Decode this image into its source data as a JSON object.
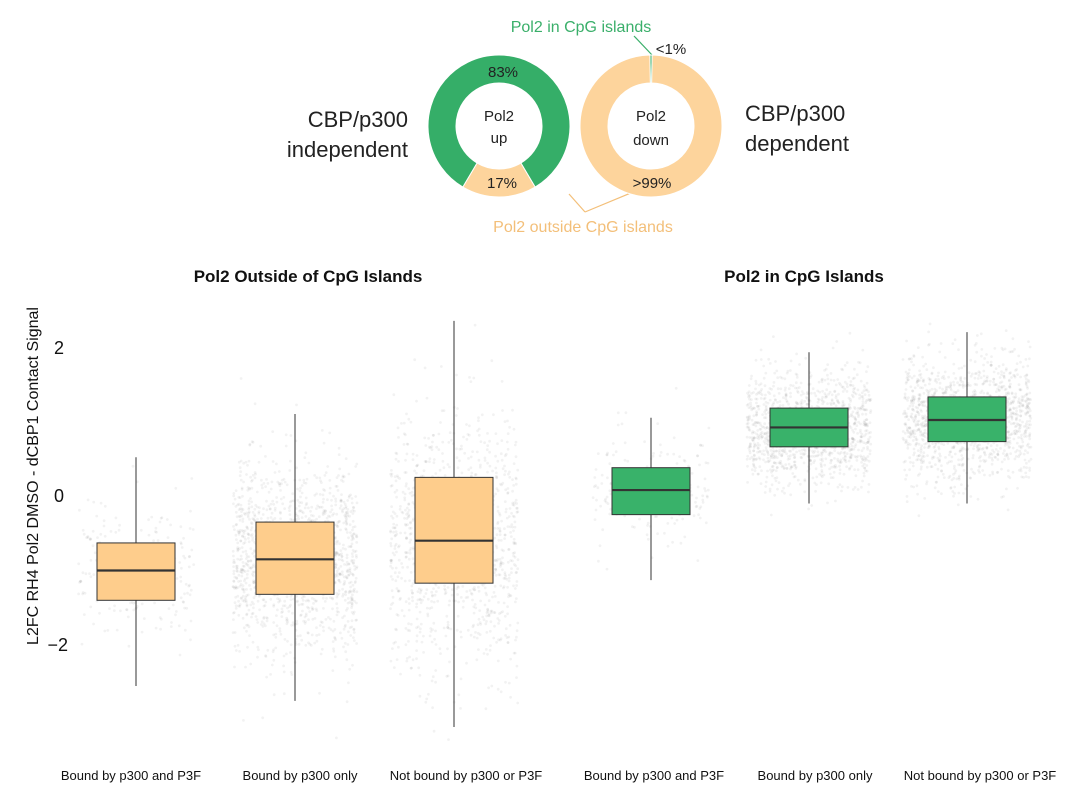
{
  "top": {
    "left_label_line1": "CBP/p300",
    "left_label_line2": "independent",
    "right_label_line1": "CBP/p300",
    "right_label_line2": "dependent",
    "legend_green": "Pol2 in CpG islands",
    "legend_orange": "Pol2 outside CpG islands",
    "donuts": [
      {
        "center_line1": "Pol2",
        "center_line2": "up",
        "slices": [
          {
            "label": "83%",
            "value": 83,
            "color": "#35ae68"
          },
          {
            "label": "17%",
            "value": 17,
            "color": "#fdd49c"
          }
        ]
      },
      {
        "center_line1": "Pol2",
        "center_line2": "down",
        "slices": [
          {
            "label": "<1%",
            "value": 0.5,
            "color": "#35ae68"
          },
          {
            "label": ">99%",
            "value": 99.5,
            "color": "#fdd49c"
          }
        ]
      }
    ]
  },
  "chart_data": {
    "type": "box",
    "ylabel": "L2FC RH4 Pol2 DMSO - dCBP1 Contact Signal",
    "ylim": [
      -3.4,
      2.65
    ],
    "yticks": [
      {
        "value": 2,
        "label": "2"
      },
      {
        "value": 0,
        "label": "0"
      },
      {
        "value": -2,
        "label": "−2"
      }
    ],
    "colors": {
      "outside": "#fecd8c",
      "cpg": "#39b26a"
    },
    "panels": [
      {
        "title": "Pol2 Outside of CpG Islands",
        "boxes": [
          {
            "category": "Bound by p300 and P3F",
            "whisker_low": -2.55,
            "q1": -1.4,
            "median": -1.0,
            "q3": -0.63,
            "whisker_high": 0.52,
            "points": 250,
            "jitter_sd": 0.55
          },
          {
            "category": "Bound by p300 only",
            "whisker_low": -2.75,
            "q1": -1.32,
            "median": -0.85,
            "q3": -0.35,
            "whisker_high": 1.1,
            "points": 1400,
            "jitter_sd": 0.75
          },
          {
            "category": "Not bound by p300 or P3F",
            "whisker_low": -3.1,
            "q1": -1.17,
            "median": -0.6,
            "q3": 0.25,
            "whisker_high": 2.35,
            "points": 1100,
            "jitter_sd": 1.0
          }
        ]
      },
      {
        "title": "Pol2 in CpG Islands",
        "boxes": [
          {
            "category": "Bound by p300 and P3F",
            "whisker_low": -1.13,
            "q1": -0.25,
            "median": 0.08,
            "q3": 0.38,
            "whisker_high": 1.05,
            "points": 180,
            "jitter_sd": 0.42
          },
          {
            "category": "Bound by p300 only",
            "whisker_low": -0.1,
            "q1": 0.66,
            "median": 0.92,
            "q3": 1.18,
            "whisker_high": 1.93,
            "points": 1200,
            "jitter_sd": 0.45
          },
          {
            "category": "Not bound by p300 or P3F",
            "whisker_low": -0.1,
            "q1": 0.73,
            "median": 1.02,
            "q3": 1.33,
            "whisker_high": 2.2,
            "points": 1300,
            "jitter_sd": 0.5
          }
        ]
      }
    ]
  }
}
